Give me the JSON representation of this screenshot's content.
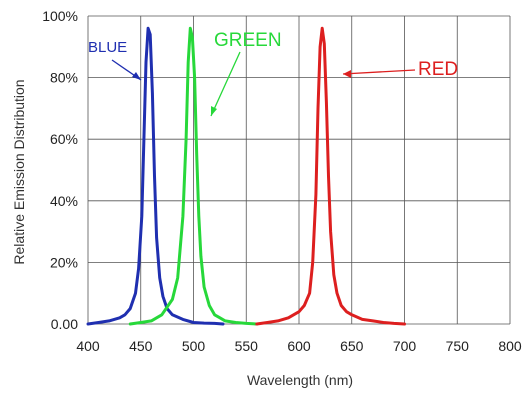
{
  "chart_data": {
    "type": "line",
    "xlabel": "Wavelength (nm)",
    "ylabel": "Relative Emission Distribution",
    "x_ticks": [
      "400",
      "450",
      "500",
      "550",
      "600",
      "650",
      "700",
      "750",
      "800"
    ],
    "y_ticks": [
      "0.00",
      "20%",
      "40%",
      "60%",
      "80%",
      "100%"
    ],
    "xlim": [
      400,
      800
    ],
    "ylim": [
      0,
      100
    ],
    "grid": true,
    "series": [
      {
        "name": "BLUE",
        "color": "#1f2fb0",
        "x": [
          400,
          410,
          420,
          430,
          435,
          440,
          445,
          448,
          451,
          453,
          455,
          457,
          459,
          461,
          463,
          465,
          468,
          471,
          475,
          480,
          490,
          500,
          510,
          520,
          528
        ],
        "y": [
          0,
          0.5,
          1,
          2,
          3,
          5,
          10,
          18,
          35,
          60,
          85,
          96,
          94,
          75,
          48,
          28,
          15,
          9,
          5,
          3,
          1.5,
          0.5,
          0.3,
          0.2,
          0
        ]
      },
      {
        "name": "GREEN",
        "color": "#27d83a",
        "x": [
          440,
          450,
          460,
          470,
          480,
          485,
          490,
          493,
          495,
          497,
          499,
          501,
          503,
          505,
          507,
          510,
          515,
          520,
          525,
          530,
          540,
          550,
          560
        ],
        "y": [
          0,
          0.5,
          1,
          3,
          8,
          15,
          35,
          60,
          85,
          96,
          93,
          80,
          55,
          35,
          22,
          12,
          6,
          3,
          2,
          1,
          0.5,
          0.2,
          0
        ]
      },
      {
        "name": "RED",
        "color": "#dd1f1f",
        "x": [
          560,
          570,
          580,
          590,
          600,
          605,
          610,
          613,
          616,
          618,
          620,
          622,
          624,
          626,
          628,
          630,
          633,
          636,
          640,
          645,
          650,
          660,
          670,
          680,
          690,
          700
        ],
        "y": [
          0,
          0.5,
          1,
          2,
          4,
          6,
          10,
          20,
          42,
          70,
          90,
          96,
          91,
          72,
          48,
          30,
          16,
          10,
          6,
          4,
          3,
          1.5,
          1,
          0.5,
          0.2,
          0
        ]
      }
    ]
  }
}
